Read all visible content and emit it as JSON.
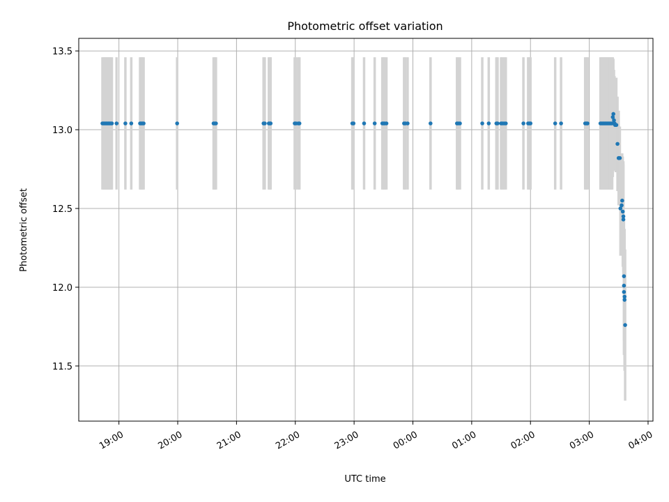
{
  "chart_data": {
    "type": "scatter",
    "title": "Photometric offset variation",
    "xlabel": "UTC time",
    "ylabel": "Photometric offset",
    "x_unit": "UTC time (hours, 18:00 = 18, next-day times continue past 24)",
    "xlim": [
      "18:19",
      "04:05"
    ],
    "ylim": [
      11.15,
      13.58
    ],
    "x_ticks": [
      {
        "label": "19:00",
        "value": 19
      },
      {
        "label": "20:00",
        "value": 20
      },
      {
        "label": "21:00",
        "value": 21
      },
      {
        "label": "22:00",
        "value": 22
      },
      {
        "label": "23:00",
        "value": 23
      },
      {
        "label": "00:00",
        "value": 24
      },
      {
        "label": "01:00",
        "value": 25
      },
      {
        "label": "02:00",
        "value": 26
      },
      {
        "label": "03:00",
        "value": 27
      },
      {
        "label": "04:00",
        "value": 28
      }
    ],
    "y_ticks": [
      {
        "label": "11.5",
        "value": 11.5
      },
      {
        "label": "12.0",
        "value": 12.0
      },
      {
        "label": "12.5",
        "value": 12.5
      },
      {
        "label": "13.0",
        "value": 13.0
      },
      {
        "label": "13.5",
        "value": 13.5
      }
    ],
    "grid": true,
    "series": [
      {
        "marker_color": "#1f77b4",
        "errorbar_color": "#d3d3d3",
        "x": [
          18.72,
          18.74,
          18.76,
          18.78,
          18.8,
          18.82,
          18.84,
          18.86,
          18.88,
          18.96,
          19.11,
          19.21,
          19.36,
          19.38,
          19.4,
          19.42,
          19.99,
          20.61,
          20.63,
          20.65,
          21.46,
          21.48,
          21.55,
          21.57,
          21.58,
          21.99,
          22.01,
          22.05,
          22.07,
          22.97,
          22.99,
          23.17,
          23.35,
          23.48,
          23.5,
          23.52,
          23.55,
          23.85,
          23.87,
          23.91,
          24.3,
          24.75,
          24.77,
          24.8,
          25.18,
          25.29,
          25.42,
          25.44,
          25.5,
          25.52,
          25.55,
          25.58,
          25.88,
          25.96,
          25.98,
          26.0,
          26.42,
          26.52,
          26.93,
          26.95,
          26.97,
          27.19,
          27.21,
          27.23,
          27.25,
          27.27,
          27.29,
          27.31,
          27.33,
          27.35,
          27.37,
          27.39,
          27.4,
          27.41,
          27.42,
          27.43,
          27.44,
          27.45,
          27.46,
          27.48,
          27.5,
          27.5,
          27.52,
          27.53,
          27.55,
          27.56,
          27.57,
          27.58,
          27.58,
          27.59,
          27.59,
          27.59,
          27.6,
          27.6,
          27.61
        ],
        "y": [
          13.04,
          13.04,
          13.04,
          13.04,
          13.04,
          13.04,
          13.04,
          13.04,
          13.04,
          13.04,
          13.04,
          13.04,
          13.04,
          13.04,
          13.04,
          13.04,
          13.04,
          13.04,
          13.04,
          13.04,
          13.04,
          13.04,
          13.04,
          13.04,
          13.04,
          13.04,
          13.04,
          13.04,
          13.04,
          13.04,
          13.04,
          13.04,
          13.04,
          13.04,
          13.04,
          13.04,
          13.04,
          13.04,
          13.04,
          13.04,
          13.04,
          13.04,
          13.04,
          13.04,
          13.04,
          13.04,
          13.04,
          13.04,
          13.04,
          13.04,
          13.04,
          13.04,
          13.04,
          13.04,
          13.04,
          13.04,
          13.04,
          13.04,
          13.04,
          13.04,
          13.04,
          13.04,
          13.04,
          13.04,
          13.04,
          13.04,
          13.04,
          13.04,
          13.04,
          13.04,
          13.04,
          13.04,
          13.08,
          13.1,
          13.06,
          13.04,
          13.03,
          13.03,
          13.03,
          12.91,
          12.82,
          12.82,
          12.82,
          12.5,
          12.52,
          12.55,
          12.48,
          12.45,
          12.43,
          12.07,
          12.01,
          11.97,
          11.94,
          11.92,
          11.76
        ],
        "yerr": [
          0.42,
          0.42,
          0.42,
          0.42,
          0.42,
          0.42,
          0.42,
          0.42,
          0.42,
          0.42,
          0.42,
          0.42,
          0.42,
          0.42,
          0.42,
          0.42,
          0.42,
          0.42,
          0.42,
          0.42,
          0.42,
          0.42,
          0.42,
          0.42,
          0.42,
          0.42,
          0.42,
          0.42,
          0.42,
          0.42,
          0.42,
          0.42,
          0.42,
          0.42,
          0.42,
          0.42,
          0.42,
          0.42,
          0.42,
          0.42,
          0.42,
          0.42,
          0.42,
          0.42,
          0.42,
          0.42,
          0.42,
          0.42,
          0.42,
          0.42,
          0.42,
          0.42,
          0.42,
          0.42,
          0.42,
          0.42,
          0.42,
          0.42,
          0.42,
          0.42,
          0.42,
          0.42,
          0.42,
          0.42,
          0.42,
          0.42,
          0.42,
          0.42,
          0.42,
          0.42,
          0.42,
          0.42,
          0.38,
          0.35,
          0.32,
          0.3,
          0.28,
          0.3,
          0.3,
          0.3,
          0.3,
          0.3,
          0.2,
          0.3,
          0.25,
          0.3,
          0.35,
          0.35,
          0.35,
          0.35,
          0.35,
          0.4,
          0.4,
          0.45,
          0.48
        ]
      }
    ]
  }
}
